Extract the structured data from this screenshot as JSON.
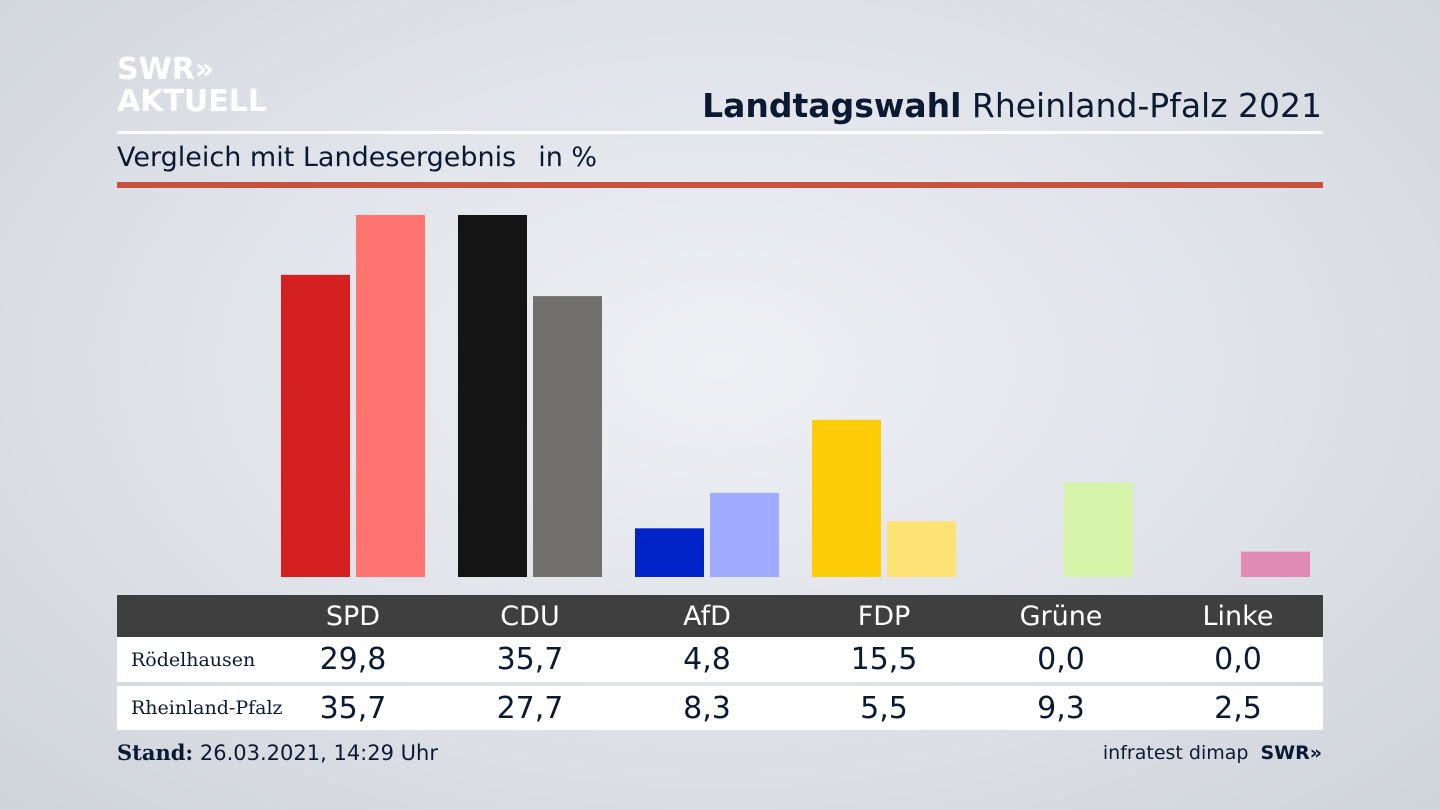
{
  "header": {
    "logo_line1": "SWR»",
    "logo_line2": "AKTUELL",
    "title_bold": "Landtagswahl",
    "title_rest": "Rheinland-Pfalz 2021",
    "subtitle": "Vergleich mit Landesergebnis",
    "unit": "in %"
  },
  "colors": {
    "accent_rule": "#c9523f",
    "table_header": "#3f3f3f"
  },
  "chart_data": {
    "type": "bar",
    "categories": [
      "SPD",
      "CDU",
      "AfD",
      "FDP",
      "Grüne",
      "Linke"
    ],
    "series": [
      {
        "name": "Rödelhausen",
        "values": [
          29.8,
          35.7,
          4.8,
          15.5,
          0.0,
          0.0
        ],
        "colors": [
          "#d42020",
          "#141414",
          "#0024c8",
          "#ffcc08",
          "#c8e690",
          "#b44c8c"
        ]
      },
      {
        "name": "Rheinland-Pfalz",
        "values": [
          35.7,
          27.7,
          8.3,
          5.5,
          9.3,
          2.5
        ],
        "colors": [
          "#ff7470",
          "#706f6d",
          "#9eabff",
          "#ffe276",
          "#d6f5aa",
          "#e08ab6"
        ]
      }
    ],
    "value_labels": [
      [
        "29,8",
        "35,7",
        "4,8",
        "15,5",
        "0,0",
        "0,0"
      ],
      [
        "35,7",
        "27,7",
        "8,3",
        "5,5",
        "9,3",
        "2,5"
      ]
    ],
    "ylim": [
      0,
      35.7
    ],
    "legend": "table-below"
  },
  "table": {
    "row_labels": [
      "Rödelhausen",
      "Rheinland-Pfalz"
    ]
  },
  "footer": {
    "stand_label": "Stand:",
    "stand_value": "26.03.2021, 14:29 Uhr",
    "source": "infratest dimap",
    "source_logo": "SWR»"
  }
}
